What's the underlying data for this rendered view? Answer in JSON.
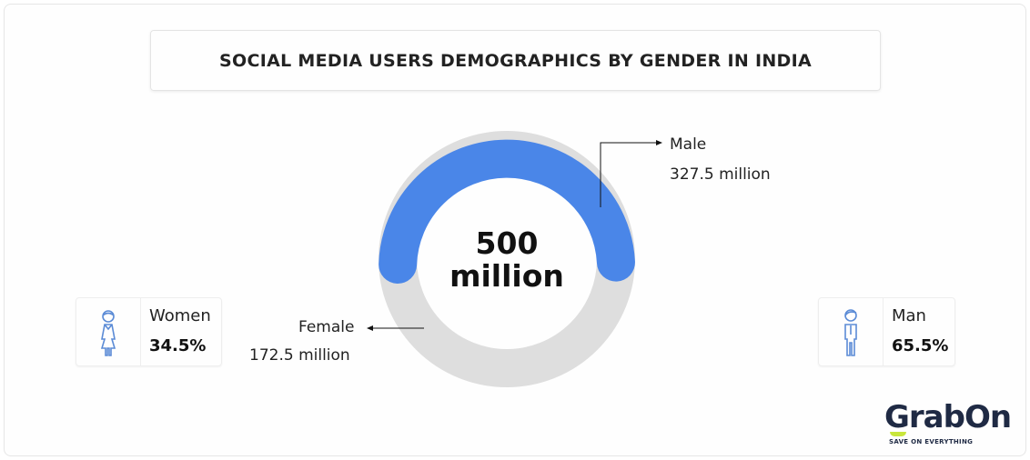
{
  "title": "SOCIAL MEDIA USERS DEMOGRAPHICS BY GENDER IN INDIA",
  "chart_data": {
    "type": "pie",
    "variant": "donut",
    "center_label": {
      "line1": "500",
      "line2": "million"
    },
    "total": 500,
    "unit": "million",
    "slices": [
      {
        "name": "Male",
        "value": 327.5,
        "label": "327.5 million",
        "color": "#4a86e8"
      },
      {
        "name": "Female",
        "value": 172.5,
        "label": "172.5 million",
        "color": "#dedede"
      }
    ]
  },
  "stats": [
    {
      "name": "Women",
      "value": "34.5%",
      "icon": "woman-icon"
    },
    {
      "name": "Man",
      "value": "65.5%",
      "icon": "man-icon"
    }
  ],
  "logo": {
    "text": "GrabOn",
    "tagline": "SAVE ON EVERYTHING"
  },
  "colors": {
    "accent": "#4a86e8",
    "icon": "#5b8bd6"
  }
}
